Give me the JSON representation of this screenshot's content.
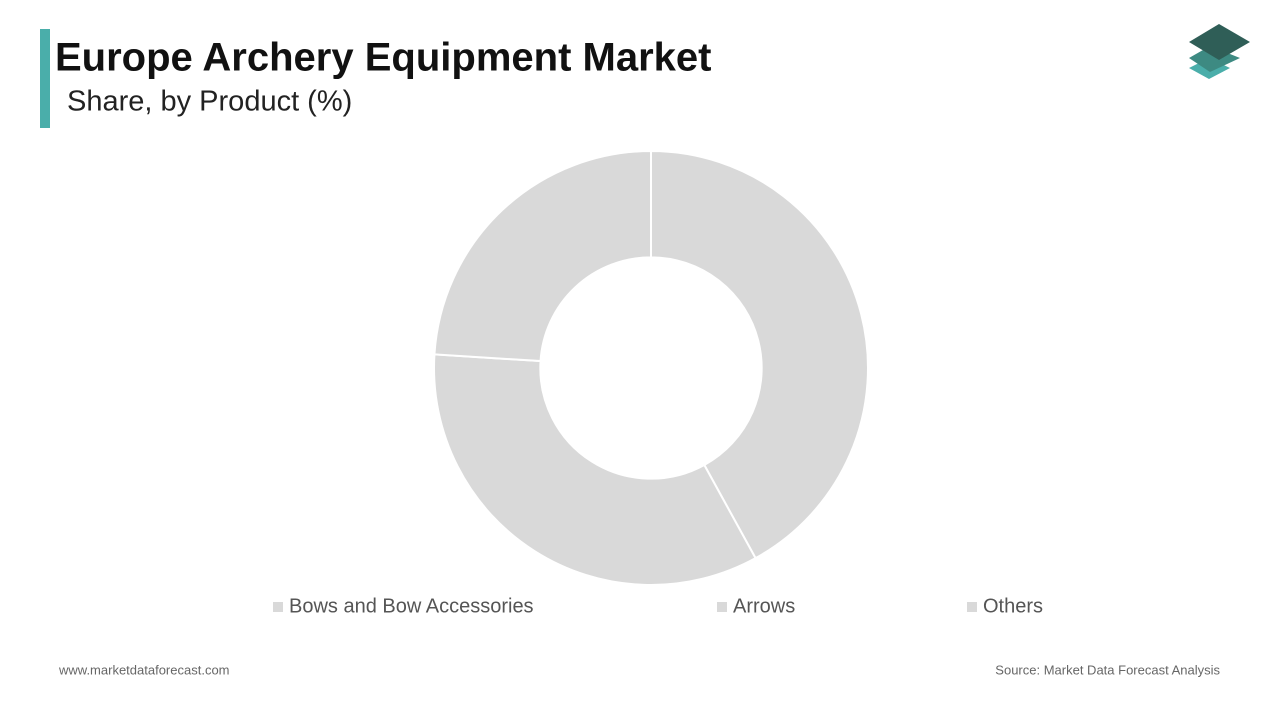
{
  "chart_data": {
    "type": "pie",
    "title": "Europe Archery Equipment Market",
    "subtitle": "Share, by Product (%)",
    "categories": [
      "Bows and Bow Accessories",
      "Arrows",
      "Others"
    ],
    "values": [
      42,
      34,
      24
    ],
    "colors": [
      "#d9d9d9",
      "#d9d9d9",
      "#d9d9d9"
    ],
    "inner_radius_ratio": 0.51,
    "website": "www.marketdataforecast.com",
    "source": "Source: Market Data Forecast Analysis"
  }
}
